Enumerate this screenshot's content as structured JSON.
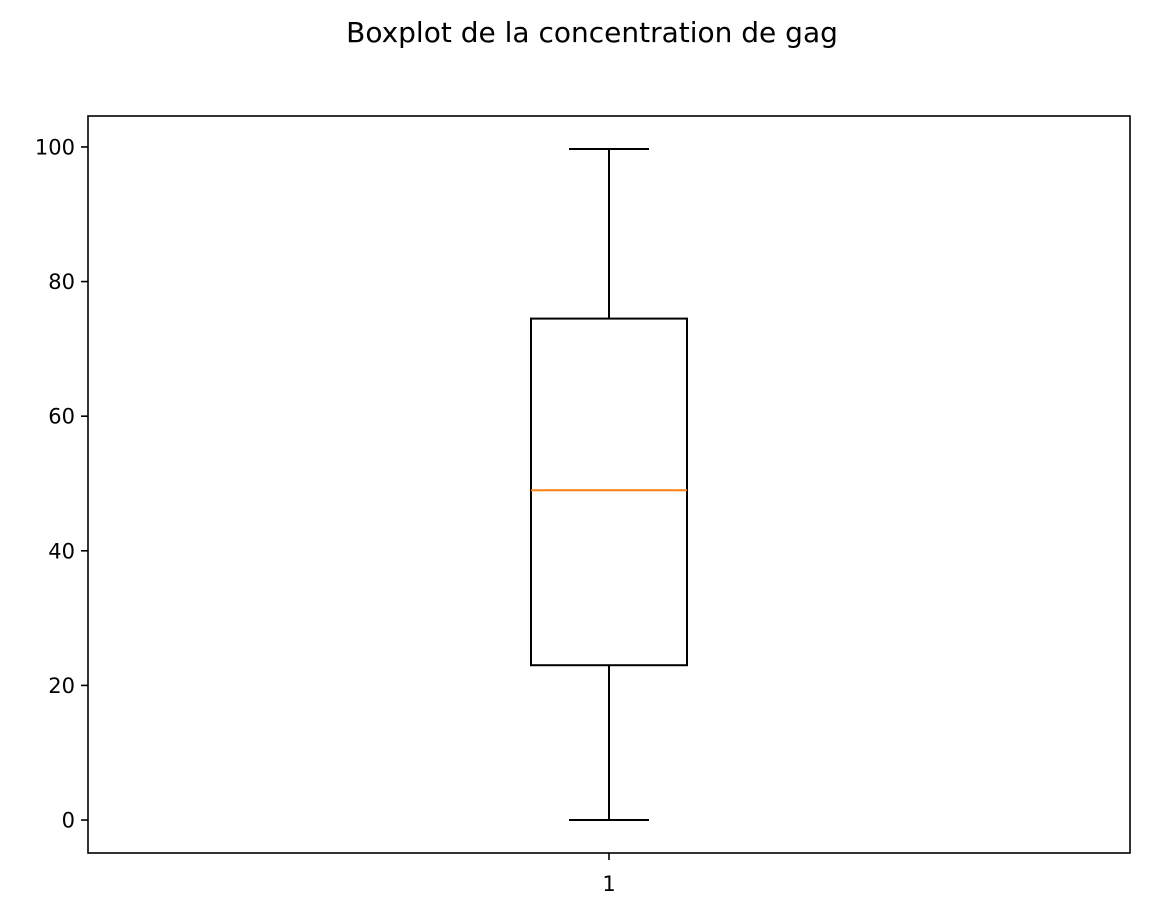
{
  "chart_data": {
    "type": "boxplot",
    "title": "Boxplot de la concentration de gag",
    "xlabel": "",
    "ylabel": "",
    "categories": [
      "1"
    ],
    "boxes": [
      {
        "category": "1",
        "whisker_low": 0,
        "q1": 23,
        "median": 49,
        "q3": 74.5,
        "whisker_high": 99.7
      }
    ],
    "ylim": [
      -4.9,
      104.6
    ],
    "yticks": [
      0,
      20,
      40,
      60,
      80,
      100
    ],
    "grid": false,
    "colors": {
      "box": "#000000",
      "median": "#ff7f0e",
      "whisker": "#000000"
    }
  }
}
